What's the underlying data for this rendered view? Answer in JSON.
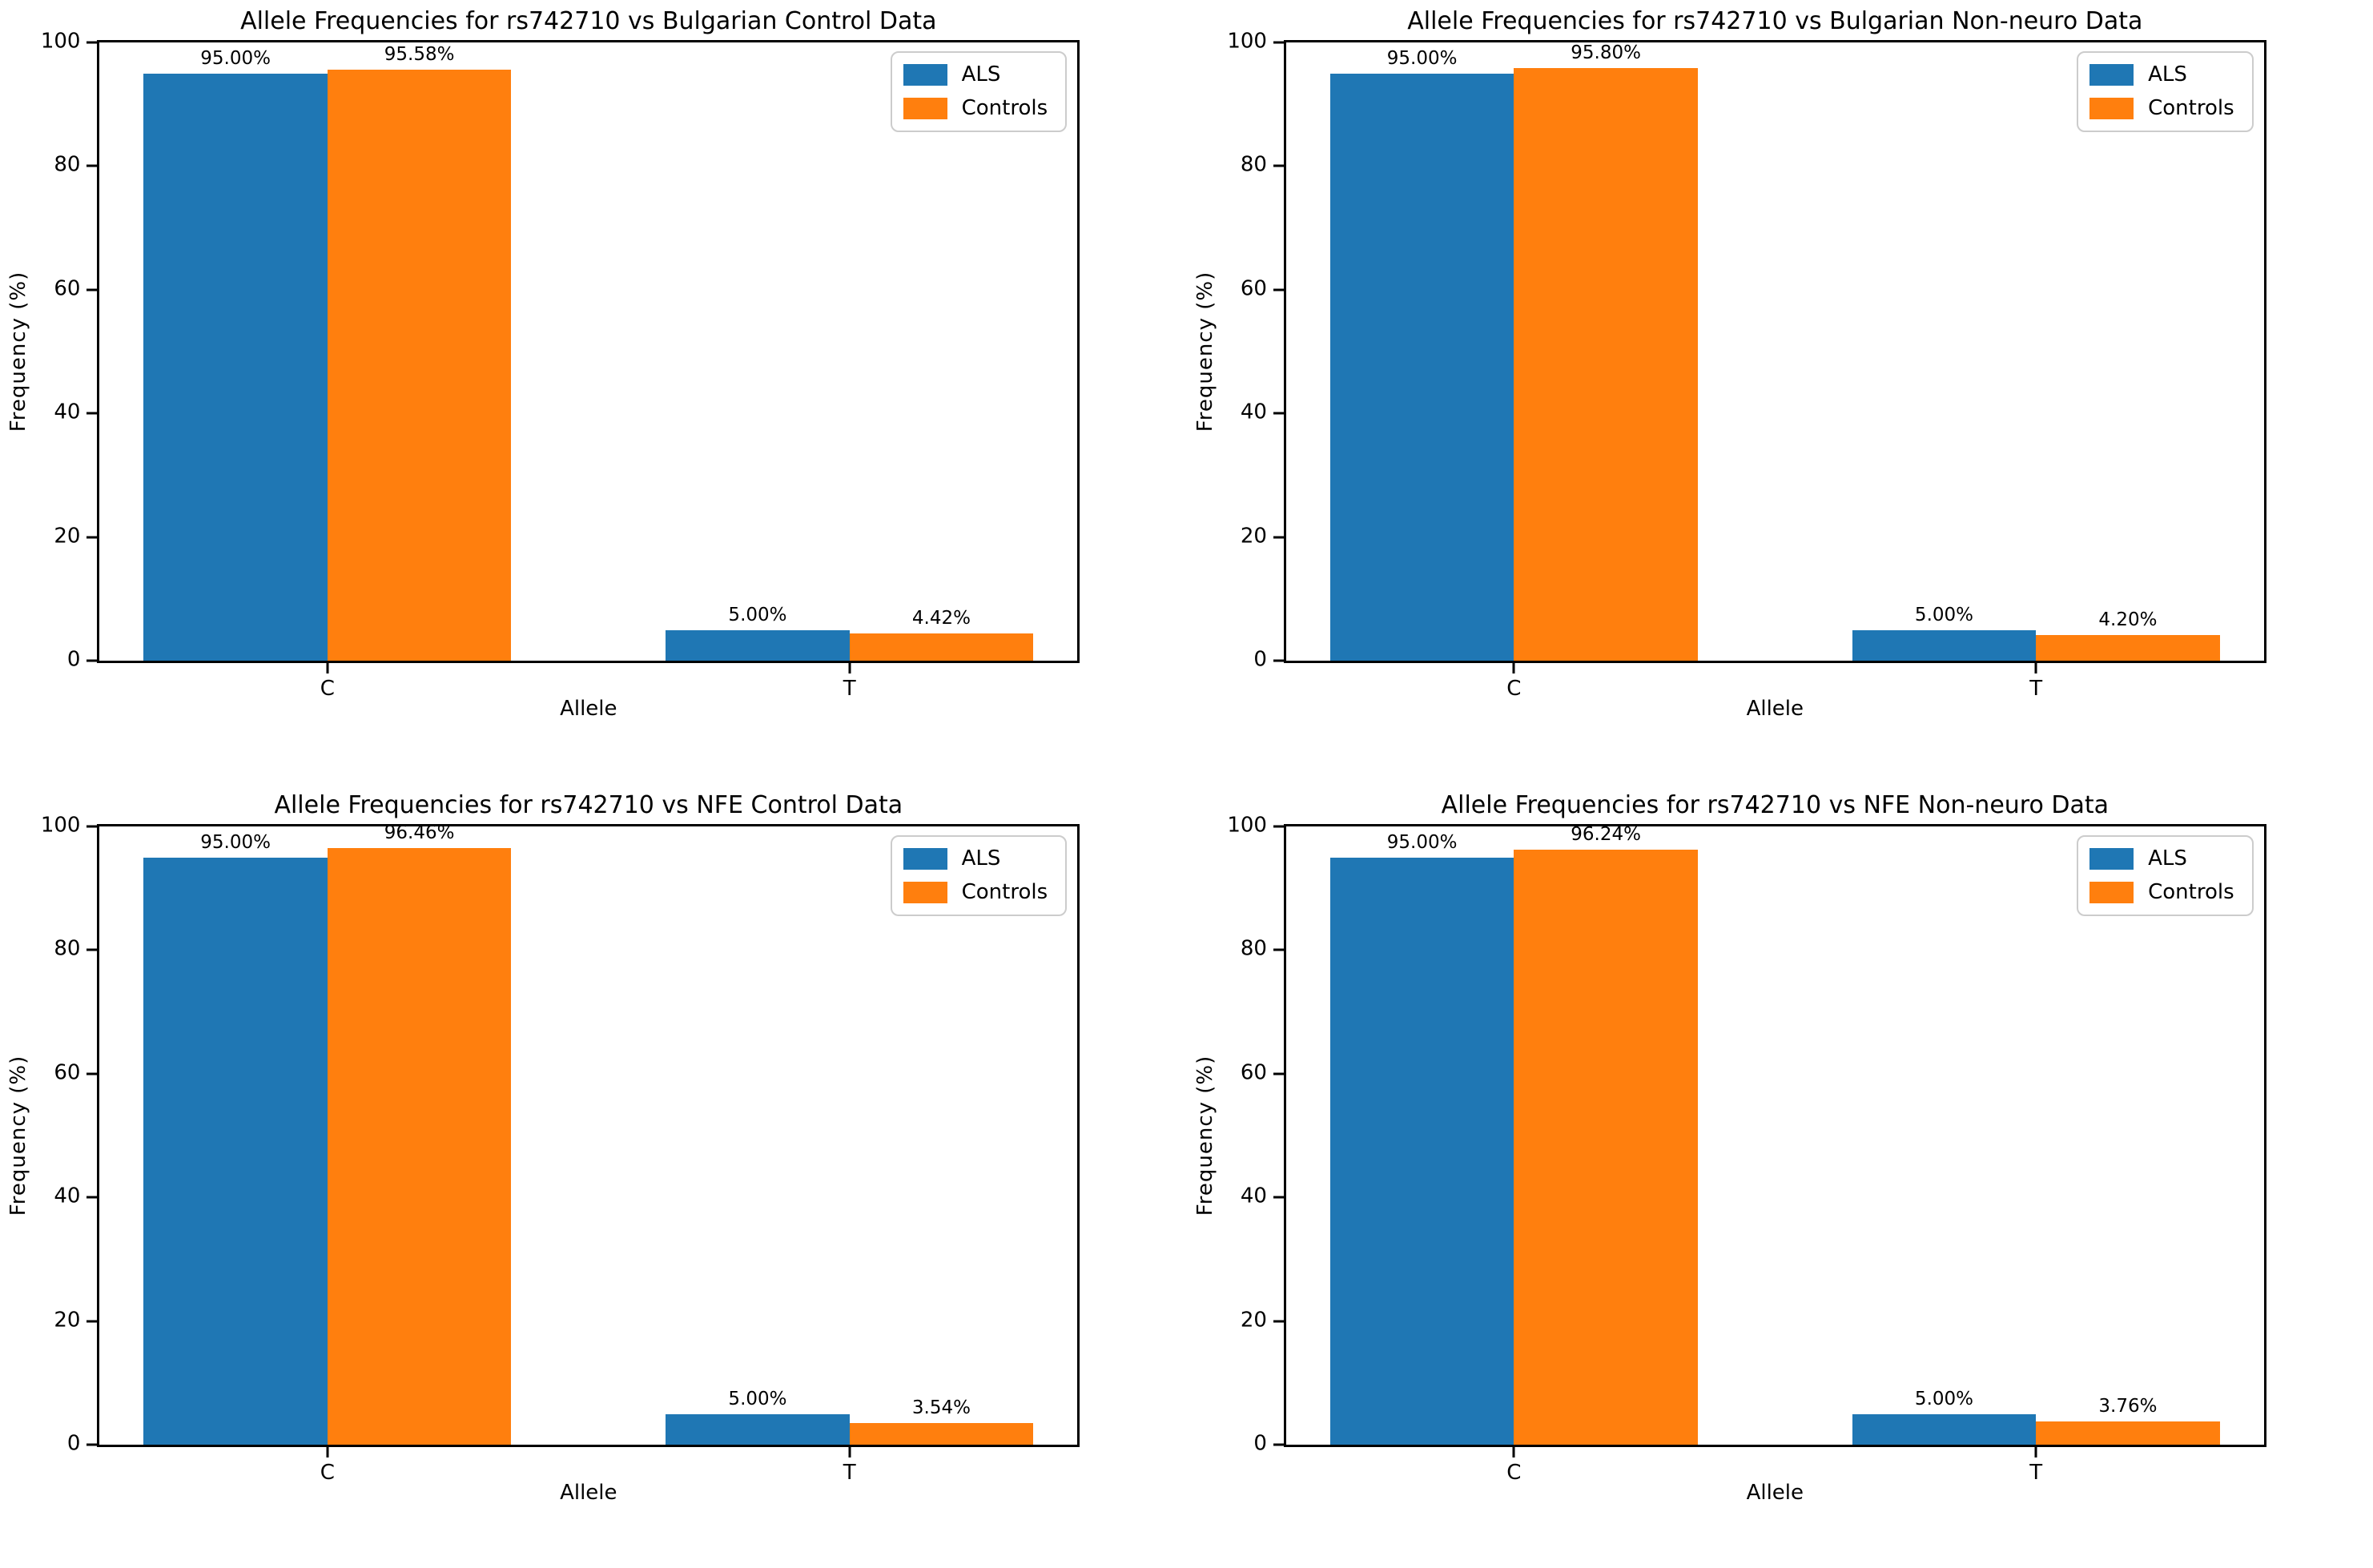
{
  "colors": {
    "als": "#1f77b4",
    "controls": "#ff7f0e",
    "spine": "#000000",
    "legend_border": "#cccccc"
  },
  "chart_data": [
    {
      "type": "bar",
      "title": "Allele Frequencies for rs742710 vs Bulgarian Control Data",
      "xlabel": "Allele",
      "ylabel": "Frequency (%)",
      "categories": [
        "C",
        "T"
      ],
      "ylim": [
        0,
        100
      ],
      "yticks": [
        0,
        20,
        40,
        60,
        80,
        100
      ],
      "grid": false,
      "legend_position": "upper right",
      "series": [
        {
          "name": "ALS",
          "color": "#1f77b4",
          "values": [
            95.0,
            5.0
          ],
          "value_labels": [
            "95.00%",
            "5.00%"
          ]
        },
        {
          "name": "Controls",
          "color": "#ff7f0e",
          "values": [
            95.58,
            4.42
          ],
          "value_labels": [
            "95.58%",
            "4.42%"
          ]
        }
      ]
    },
    {
      "type": "bar",
      "title": "Allele Frequencies for rs742710 vs Bulgarian Non-neuro Data",
      "xlabel": "Allele",
      "ylabel": "Frequency (%)",
      "categories": [
        "C",
        "T"
      ],
      "ylim": [
        0,
        100
      ],
      "yticks": [
        0,
        20,
        40,
        60,
        80,
        100
      ],
      "grid": false,
      "legend_position": "upper right",
      "series": [
        {
          "name": "ALS",
          "color": "#1f77b4",
          "values": [
            95.0,
            5.0
          ],
          "value_labels": [
            "95.00%",
            "5.00%"
          ]
        },
        {
          "name": "Controls",
          "color": "#ff7f0e",
          "values": [
            95.8,
            4.2
          ],
          "value_labels": [
            "95.80%",
            "4.20%"
          ]
        }
      ]
    },
    {
      "type": "bar",
      "title": "Allele Frequencies for rs742710 vs NFE Control Data",
      "xlabel": "Allele",
      "ylabel": "Frequency (%)",
      "categories": [
        "C",
        "T"
      ],
      "ylim": [
        0,
        100
      ],
      "yticks": [
        0,
        20,
        40,
        60,
        80,
        100
      ],
      "grid": false,
      "legend_position": "upper right",
      "series": [
        {
          "name": "ALS",
          "color": "#1f77b4",
          "values": [
            95.0,
            5.0
          ],
          "value_labels": [
            "95.00%",
            "5.00%"
          ]
        },
        {
          "name": "Controls",
          "color": "#ff7f0e",
          "values": [
            96.46,
            3.54
          ],
          "value_labels": [
            "96.46%",
            "3.54%"
          ]
        }
      ]
    },
    {
      "type": "bar",
      "title": "Allele Frequencies for rs742710 vs NFE Non-neuro Data",
      "xlabel": "Allele",
      "ylabel": "Frequency (%)",
      "categories": [
        "C",
        "T"
      ],
      "ylim": [
        0,
        100
      ],
      "yticks": [
        0,
        20,
        40,
        60,
        80,
        100
      ],
      "grid": false,
      "legend_position": "upper right",
      "series": [
        {
          "name": "ALS",
          "color": "#1f77b4",
          "values": [
            95.0,
            5.0
          ],
          "value_labels": [
            "95.00%",
            "5.00%"
          ]
        },
        {
          "name": "Controls",
          "color": "#ff7f0e",
          "values": [
            96.24,
            3.76
          ],
          "value_labels": [
            "96.24%",
            "3.76%"
          ]
        }
      ]
    }
  ]
}
